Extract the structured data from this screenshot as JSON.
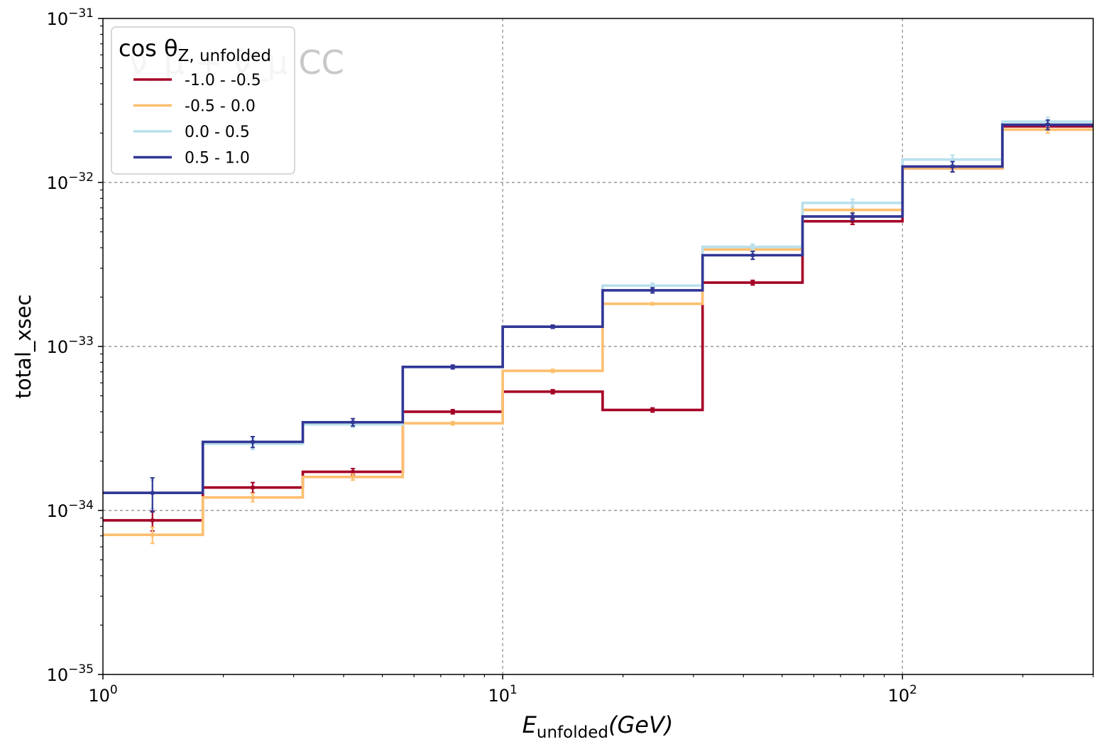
{
  "chart_data": {
    "type": "line",
    "step_histogram": true,
    "title": "",
    "xlabel": {
      "main": "E",
      "sub": "unfolded",
      "unit": "(GeV)"
    },
    "ylabel": "total_xsec",
    "xscale": "log",
    "yscale": "log",
    "xlim": [
      1,
      300
    ],
    "ylim": [
      1e-35,
      1e-31
    ],
    "grid": true,
    "watermark": "ν_μ + ν̄_μ CC",
    "legend": {
      "placement": "top-left",
      "title": {
        "main": "cos θ",
        "sub": "Z, unfolded"
      }
    },
    "x_ticks": [
      {
        "base": "10",
        "exp": "0",
        "value": 1
      },
      {
        "base": "10",
        "exp": "1",
        "value": 10
      },
      {
        "base": "10",
        "exp": "2",
        "value": 100
      }
    ],
    "y_ticks": [
      {
        "base": "10",
        "exp": "−35",
        "value": 1e-35
      },
      {
        "base": "10",
        "exp": "−34",
        "value": 1e-34
      },
      {
        "base": "10",
        "exp": "−33",
        "value": 1e-33
      },
      {
        "base": "10",
        "exp": "−32",
        "value": 1e-32
      },
      {
        "base": "10",
        "exp": "−31",
        "value": 1e-31
      }
    ],
    "bin_edges": [
      1.0,
      1.778,
      3.162,
      5.623,
      10.0,
      17.78,
      31.62,
      56.23,
      100.0,
      177.8,
      300.0
    ],
    "bin_centers": [
      1.33,
      2.37,
      4.22,
      7.5,
      13.34,
      23.7,
      42.2,
      75.0,
      133.4,
      230.9
    ],
    "series": [
      {
        "name": "-1.0 - -0.5",
        "color": "#a50026",
        "values": [
          8.7e-35,
          1.38e-34,
          1.72e-34,
          4e-34,
          5.3e-34,
          4.1e-34,
          2.45e-33,
          5.8e-33,
          1.22e-32,
          2.2e-32
        ],
        "errors": [
          1.2e-35,
          1e-35,
          8e-36,
          1.2e-35,
          1.5e-35,
          1.2e-35,
          8e-35,
          2.5e-34,
          6e-34,
          1e-33
        ]
      },
      {
        "name": "-0.5 - 0.0",
        "color": "#fdbf6f",
        "values": [
          7.1e-35,
          1.2e-34,
          1.6e-34,
          3.4e-34,
          7.1e-34,
          1.82e-33,
          3.9e-33,
          6.8e-33,
          1.22e-32,
          2.1e-32
        ],
        "errors": [
          8e-36,
          7e-36,
          7e-36,
          8e-36,
          1.5e-35,
          3e-35,
          1e-34,
          3e-34,
          6e-34,
          1e-33
        ]
      },
      {
        "name": "0.0 - 0.5",
        "color": "#b9e0ec",
        "values": [
          1.28e-34,
          2.55e-34,
          3.35e-34,
          7.5e-34,
          1.32e-33,
          2.35e-33,
          4.05e-33,
          7.5e-33,
          1.38e-32,
          2.35e-32
        ],
        "errors": [
          2.5e-35,
          2e-35,
          1.5e-35,
          2e-35,
          3e-35,
          8e-35,
          1.5e-34,
          4e-34,
          9e-34,
          1.4e-33
        ]
      },
      {
        "name": "0.5 - 1.0",
        "color": "#313695",
        "values": [
          1.28e-34,
          2.62e-34,
          3.45e-34,
          7.5e-34,
          1.32e-33,
          2.2e-33,
          3.6e-33,
          6.2e-33,
          1.25e-32,
          2.25e-32
        ],
        "errors": [
          3e-35,
          2e-35,
          1.8e-35,
          2e-35,
          3e-35,
          8e-35,
          2e-34,
          3e-34,
          9e-34,
          1.5e-33
        ]
      }
    ]
  }
}
